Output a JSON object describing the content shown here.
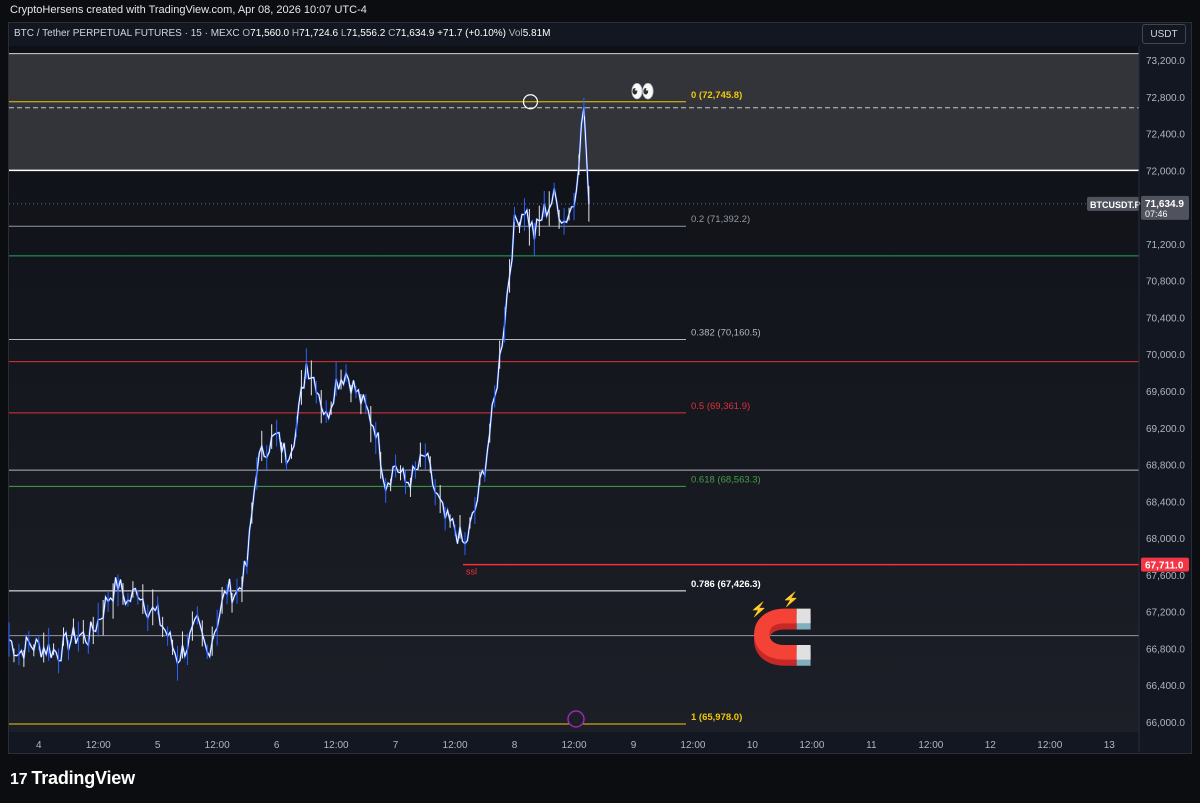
{
  "header": {
    "credit": "CryptoHersens created with TradingView.com, Apr 08, 2026 10:07 UTC-4"
  },
  "legend": {
    "symbol": "BTC / Tether PERPETUAL FUTURES · 15 · MEXC",
    "open_label": "O",
    "open": "71,560.0",
    "high_label": "H",
    "high": "71,724.6",
    "low_label": "L",
    "low": "71,556.2",
    "close_label": "C",
    "close": "71,634.9",
    "change": "+71.7 (+0.10%)",
    "vol_label": "Vol",
    "vol": "5.81M"
  },
  "currency_button": "USDT",
  "footer": {
    "logo_mark": "17",
    "logo_text": "TradingView"
  },
  "emojis": {
    "eyes": "👀",
    "magnet": "🧲",
    "bolt": "⚡"
  },
  "chart_data": {
    "type": "candlestick",
    "y_ticks": [
      "73,200.0",
      "72,800.0",
      "72,400.0",
      "72,000.0",
      "71,600.0",
      "71,200.0",
      "70,800.0",
      "70,400.0",
      "70,000.0",
      "69,600.0",
      "69,200.0",
      "68,800.0",
      "68,400.0",
      "68,000.0",
      "67,600.0",
      "67,200.0",
      "66,800.0",
      "66,400.0",
      "66,000.0"
    ],
    "y_tick_values": [
      73200,
      72800,
      72400,
      72000,
      71600,
      71200,
      70800,
      70400,
      70000,
      69600,
      69200,
      68800,
      68400,
      68000,
      67600,
      67200,
      66800,
      66400,
      66000
    ],
    "ylim": [
      65900,
      73350
    ],
    "x_ticks": [
      "4",
      "12:00",
      "5",
      "12:00",
      "6",
      "12:00",
      "7",
      "12:00",
      "8",
      "12:00",
      "9",
      "12:00",
      "10",
      "12:00",
      "11",
      "12:00",
      "12",
      "12:00",
      "13"
    ],
    "x_tick_hours": [
      0,
      12,
      24,
      36,
      48,
      60,
      72,
      84,
      96,
      108,
      120,
      132,
      144,
      156,
      168,
      180,
      192,
      204,
      216
    ],
    "x_start_hour": -6,
    "x_end_hour": 222,
    "series_color": "#ffffff",
    "series_color_alt": "#2962ff",
    "price": [
      [
        -6,
        66900
      ],
      [
        -4,
        66750
      ],
      [
        -2,
        66850
      ],
      [
        0,
        66820
      ],
      [
        2,
        66800
      ],
      [
        4,
        66750
      ],
      [
        6,
        66880
      ],
      [
        8,
        66950
      ],
      [
        10,
        66920
      ],
      [
        12,
        67100
      ],
      [
        14,
        67350
      ],
      [
        16,
        67500
      ],
      [
        18,
        67300
      ],
      [
        20,
        67450
      ],
      [
        22,
        67250
      ],
      [
        24,
        67150
      ],
      [
        26,
        66950
      ],
      [
        28,
        66700
      ],
      [
        30,
        66850
      ],
      [
        32,
        67050
      ],
      [
        34,
        66750
      ],
      [
        36,
        67100
      ],
      [
        38,
        67450
      ],
      [
        40,
        67400
      ],
      [
        42,
        67700
      ],
      [
        44,
        68800
      ],
      [
        46,
        69000
      ],
      [
        48,
        69100
      ],
      [
        50,
        68900
      ],
      [
        52,
        69200
      ],
      [
        54,
        69900
      ],
      [
        56,
        69700
      ],
      [
        58,
        69300
      ],
      [
        60,
        69700
      ],
      [
        62,
        69800
      ],
      [
        64,
        69600
      ],
      [
        66,
        69400
      ],
      [
        68,
        69200
      ],
      [
        70,
        68600
      ],
      [
        72,
        68800
      ],
      [
        74,
        68600
      ],
      [
        76,
        68700
      ],
      [
        78,
        68900
      ],
      [
        80,
        68500
      ],
      [
        82,
        68200
      ],
      [
        84,
        68100
      ],
      [
        86,
        67900
      ],
      [
        88,
        68300
      ],
      [
        90,
        68800
      ],
      [
        92,
        69500
      ],
      [
        94,
        70400
      ],
      [
        96,
        71400
      ],
      [
        98,
        71600
      ],
      [
        100,
        71300
      ],
      [
        102,
        71550
      ],
      [
        104,
        71700
      ],
      [
        106,
        71450
      ],
      [
        108,
        71650
      ],
      [
        110,
        72700
      ],
      [
        111,
        71634.9
      ]
    ],
    "horizontal_lines": [
      {
        "price": 72745.8,
        "color": "#f0c808",
        "label": "0 (72,745.8)"
      },
      {
        "price": 72000.0,
        "color": "#ffffff"
      },
      {
        "price": 71392.2,
        "color": "#9598a1",
        "label": "0.2 (71,392.2)"
      },
      {
        "price": 71070.0,
        "color": "#26a65b"
      },
      {
        "price": 70160.5,
        "color": "#b2b5be",
        "label": "0.382 (70,160.5)"
      },
      {
        "price": 69920.0,
        "color": "#e0303a"
      },
      {
        "price": 69361.9,
        "color": "#e0303a",
        "label": "0.5 (69,361.9)"
      },
      {
        "price": 68740.0,
        "color": "#b2b5be"
      },
      {
        "price": 68563.3,
        "color": "#43a047",
        "label": "0.618 (68,563.3)"
      },
      {
        "price": 67711.0,
        "color": "#ff2d3a",
        "label": "ssl"
      },
      {
        "price": 67426.3,
        "color": "#ffffff",
        "label": "0.786 (67,426.3)"
      },
      {
        "price": 66940.0,
        "color": "#9598a1"
      },
      {
        "price": 65978.0,
        "color": "#f0c808",
        "label": "1 (65,978.0)"
      }
    ],
    "price_tags": [
      {
        "symbol": "BTCUSDT.P",
        "price": 71634.9,
        "price_label": "71,634.9",
        "time": "07:46"
      },
      {
        "price": 67711.0,
        "price_label": "67,711.0"
      }
    ],
    "zone": {
      "top": 73270,
      "bottom": 72000
    },
    "dashed_line": 72680
  }
}
